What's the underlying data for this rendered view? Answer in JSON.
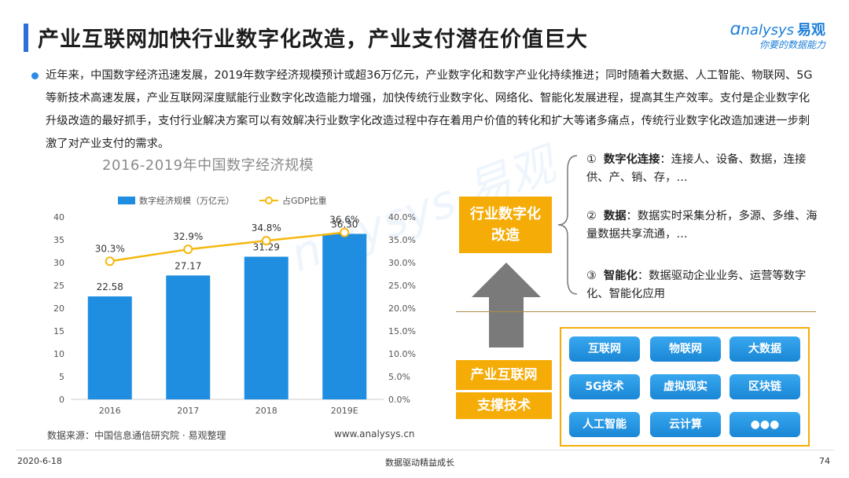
{
  "title": "产业互联网加快行业数字化改造，产业支付潜在价值巨大",
  "logo": {
    "brand_latin": "nalysys",
    "brand_cn": "易观",
    "slogan": "你要的数据能力"
  },
  "intro": "近年来，中国数字经济迅速发展，2019年数字经济规模预计或超36万亿元，产业数字化和数字产业化持续推进；同时随着大数据、人工智能、物联网、5G等新技术高速发展，产业互联网深度赋能行业数字化改造能力增强，加快传统行业数字化、网络化、智能化发展进程，提高其生产效率。支付是企业数字化升级改造的最好抓手，支付行业解决方案可以有效解决行业数字化改造过程中存在着用户价值的转化和扩大等诸多痛点，传统行业数字化改造加速进一步刺激了对产业支付的需求。",
  "chart_title": "2016-2019年中国数字经济规模",
  "chart_data": {
    "type": "bar",
    "categories": [
      "2016",
      "2017",
      "2018",
      "2019E"
    ],
    "series": [
      {
        "name": "数字经济规模（万亿元）",
        "type": "bar",
        "axis": "left",
        "values": [
          22.58,
          27.17,
          31.29,
          36.3
        ],
        "labels": [
          "22.58",
          "27.17",
          "31.29",
          "36.30"
        ],
        "color": "#1f8ee0"
      },
      {
        "name": "占GDP比重",
        "type": "line",
        "axis": "right",
        "values": [
          30.3,
          32.9,
          34.8,
          36.6
        ],
        "labels": [
          "30.3%",
          "32.9%",
          "34.8%",
          "36.6%"
        ],
        "color": "#f5b80e"
      }
    ],
    "left_axis": {
      "ylim": [
        0,
        40
      ],
      "ticks": [
        "0",
        "5",
        "10",
        "15",
        "20",
        "25",
        "30",
        "35",
        "40"
      ]
    },
    "right_axis": {
      "ylim": [
        0,
        40
      ],
      "ticks": [
        "0.0%",
        "5.0%",
        "10.0%",
        "15.0%",
        "20.0%",
        "25.0%",
        "30.0%",
        "35.0%",
        "40.0%"
      ]
    },
    "legend": "top",
    "grid": false
  },
  "source": "数据来源：中国信息通信研究院 · 易观整理",
  "website": "www.analysys.cn",
  "top_box": [
    "行业数字化",
    "改造"
  ],
  "bottom_box": [
    "产业互联网",
    "支撑技术"
  ],
  "points": [
    {
      "num": "①",
      "head": "数字化连接",
      "text": "：连接人、设备、数据，连接供、产、销、存，…"
    },
    {
      "num": "②",
      "head": "数据",
      "text": "：数据实时采集分析，多源、多维、海量数据共享流通，…"
    },
    {
      "num": "③",
      "head": "智能化",
      "text": "：数据驱动企业业务、运营等数字化、智能化应用"
    }
  ],
  "techs": [
    "互联网",
    "物联网",
    "大数据",
    "5G技术",
    "虚拟现实",
    "区块链",
    "人工智能",
    "云计算",
    "●●●"
  ],
  "watermark": "nalysys 易观",
  "footer": {
    "date": "2020-6-18",
    "center": "数据驱动精益成长",
    "page": "74"
  },
  "colors": {
    "accent": "#2e6fd6",
    "bar": "#1f8ee0",
    "line": "#f5b80e",
    "box": "#f5ac06",
    "tile": "#2196e3"
  }
}
